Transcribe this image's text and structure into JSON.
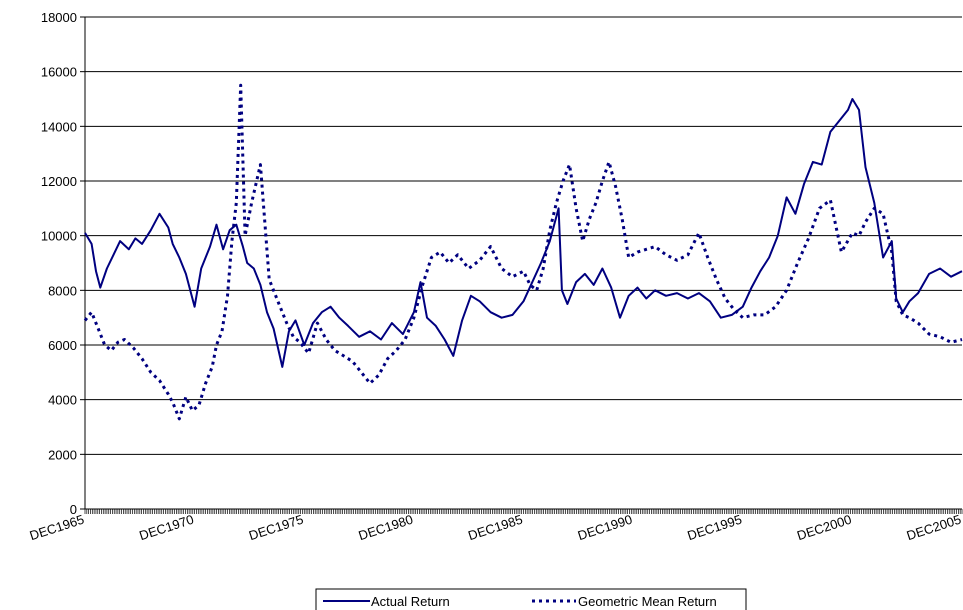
{
  "chart_data": {
    "type": "line",
    "title": "",
    "xlabel": "",
    "ylabel": "",
    "ylim": [
      0,
      18000
    ],
    "yticks": [
      "0",
      "2000",
      "4000",
      "6000",
      "8000",
      "10000",
      "12000",
      "14000",
      "16000",
      "18000"
    ],
    "xlim": [
      1966.0,
      2006.0
    ],
    "xticks": [
      {
        "label": "DEC1965",
        "x": 1966.0
      },
      {
        "label": "DEC1970",
        "x": 1971.0
      },
      {
        "label": "DEC1975",
        "x": 1976.0
      },
      {
        "label": "DEC1980",
        "x": 1981.0
      },
      {
        "label": "DEC1985",
        "x": 1986.0
      },
      {
        "label": "DEC1990",
        "x": 1991.0
      },
      {
        "label": "DEC1995",
        "x": 1996.0
      },
      {
        "label": "DEC2000",
        "x": 2001.0
      },
      {
        "label": "DEC2005",
        "x": 2006.0
      }
    ],
    "grid": "horizontal",
    "legend": "bottom",
    "colors": {
      "line": "#000080",
      "axis": "#000000",
      "grid": "#000000"
    },
    "series": [
      {
        "name": "Actual Return",
        "style": "solid",
        "x": [
          1966.0,
          1966.3,
          1966.5,
          1966.7,
          1967.0,
          1967.3,
          1967.6,
          1968.0,
          1968.3,
          1968.6,
          1969.0,
          1969.4,
          1969.8,
          1970.0,
          1970.3,
          1970.6,
          1971.0,
          1971.3,
          1971.7,
          1972.0,
          1972.3,
          1972.6,
          1972.9,
          1973.2,
          1973.4,
          1973.7,
          1974.0,
          1974.3,
          1974.6,
          1975.0,
          1975.3,
          1975.6,
          1976.0,
          1976.4,
          1976.8,
          1977.2,
          1977.6,
          1978.0,
          1978.5,
          1979.0,
          1979.5,
          1980.0,
          1980.5,
          1981.0,
          1981.3,
          1981.6,
          1982.0,
          1982.4,
          1982.8,
          1983.2,
          1983.6,
          1984.0,
          1984.5,
          1985.0,
          1985.5,
          1986.0,
          1986.4,
          1986.8,
          1987.2,
          1987.6,
          1987.75,
          1988.0,
          1988.4,
          1988.8,
          1989.2,
          1989.6,
          1990.0,
          1990.4,
          1990.8,
          1991.2,
          1991.6,
          1992.0,
          1992.5,
          1993.0,
          1993.5,
          1994.0,
          1994.5,
          1995.0,
          1995.5,
          1996.0,
          1996.4,
          1996.8,
          1997.2,
          1997.6,
          1998.0,
          1998.4,
          1998.8,
          1999.2,
          1999.6,
          2000.0,
          2000.4,
          2000.8,
          2001.0,
          2001.3,
          2001.6,
          2002.0,
          2002.4,
          2002.8,
          2003.0,
          2003.3,
          2003.6,
          2004.0,
          2004.5,
          2005.0,
          2005.5,
          2006.0
        ],
        "values": [
          10100,
          9700,
          8700,
          8100,
          8800,
          9300,
          9800,
          9500,
          9900,
          9700,
          10200,
          10800,
          10300,
          9700,
          9200,
          8600,
          7400,
          8800,
          9600,
          10400,
          9500,
          10200,
          10400,
          9600,
          9000,
          8800,
          8200,
          7200,
          6600,
          5200,
          6500,
          6900,
          6000,
          6800,
          7200,
          7400,
          7000,
          6700,
          6300,
          6500,
          6200,
          6800,
          6400,
          7200,
          8300,
          7000,
          6700,
          6200,
          5600,
          6900,
          7800,
          7600,
          7200,
          7000,
          7100,
          7600,
          8300,
          9000,
          9800,
          11000,
          8000,
          7500,
          8300,
          8600,
          8200,
          8800,
          8100,
          7000,
          7800,
          8100,
          7700,
          8000,
          7800,
          7900,
          7700,
          7900,
          7600,
          7000,
          7100,
          7400,
          8100,
          8700,
          9200,
          10000,
          11400,
          10800,
          11900,
          12700,
          12600,
          13800,
          14200,
          14600,
          15000,
          14600,
          12500,
          11200,
          9200,
          9800,
          7700,
          7200,
          7600,
          7900,
          8600,
          8800,
          8500,
          8700
        ]
      },
      {
        "name": "Geometric Mean Return",
        "style": "dotted",
        "x": [
          1966.0,
          1966.3,
          1966.6,
          1966.9,
          1967.2,
          1967.5,
          1967.8,
          1968.2,
          1968.6,
          1969.0,
          1969.4,
          1969.8,
          1970.0,
          1970.3,
          1970.6,
          1970.9,
          1971.2,
          1971.5,
          1971.8,
          1972.0,
          1972.25,
          1972.5,
          1972.7,
          1972.9,
          1973.1,
          1973.3,
          1973.6,
          1974.0,
          1974.4,
          1974.8,
          1975.2,
          1975.5,
          1975.8,
          1976.2,
          1976.6,
          1977.0,
          1977.4,
          1977.8,
          1978.2,
          1978.6,
          1979.0,
          1979.4,
          1979.8,
          1980.2,
          1980.6,
          1981.0,
          1981.4,
          1981.8,
          1982.2,
          1982.6,
          1983.0,
          1983.5,
          1984.0,
          1984.5,
          1985.0,
          1985.5,
          1986.0,
          1986.3,
          1986.6,
          1986.9,
          1987.2,
          1987.5,
          1987.8,
          1988.1,
          1988.4,
          1988.7,
          1989.0,
          1989.3,
          1989.6,
          1989.9,
          1990.2,
          1990.5,
          1990.8,
          1991.2,
          1991.6,
          1992.0,
          1992.5,
          1993.0,
          1993.5,
          1994.0,
          1994.4,
          1994.8,
          1995.2,
          1995.6,
          1996.0,
          1996.5,
          1997.0,
          1997.5,
          1998.0,
          1998.5,
          1999.0,
          1999.5,
          2000.0,
          2000.5,
          2001.0,
          2001.3,
          2001.6,
          2002.0,
          2002.4,
          2002.8,
          2003.0,
          2003.3,
          2003.6,
          2004.0,
          2004.5,
          2005.0,
          2005.5,
          2006.0
        ],
        "values": [
          6900,
          7200,
          6600,
          6000,
          5800,
          6100,
          6200,
          5900,
          5500,
          5000,
          4700,
          4200,
          3900,
          3300,
          4100,
          3600,
          3800,
          4600,
          5200,
          6000,
          6500,
          7800,
          9800,
          11200,
          15500,
          10000,
          11200,
          12600,
          8400,
          7600,
          6800,
          6300,
          6100,
          5700,
          6800,
          6200,
          5800,
          5600,
          5400,
          5000,
          4600,
          4900,
          5500,
          5800,
          6200,
          7000,
          8200,
          9200,
          9400,
          9000,
          9300,
          8800,
          9100,
          9600,
          8800,
          8500,
          8700,
          8200,
          8000,
          8800,
          10200,
          11200,
          12000,
          12600,
          11000,
          9800,
          10600,
          11200,
          12000,
          12700,
          11800,
          10600,
          9200,
          9400,
          9500,
          9600,
          9300,
          9100,
          9300,
          10100,
          9200,
          8400,
          7700,
          7300,
          7000,
          7100,
          7100,
          7400,
          8000,
          9000,
          9900,
          11000,
          11300,
          9400,
          10100,
          10000,
          10500,
          11000,
          10800,
          9400,
          7600,
          7100,
          7000,
          6800,
          6400,
          6300,
          6100,
          6200
        ]
      }
    ]
  }
}
